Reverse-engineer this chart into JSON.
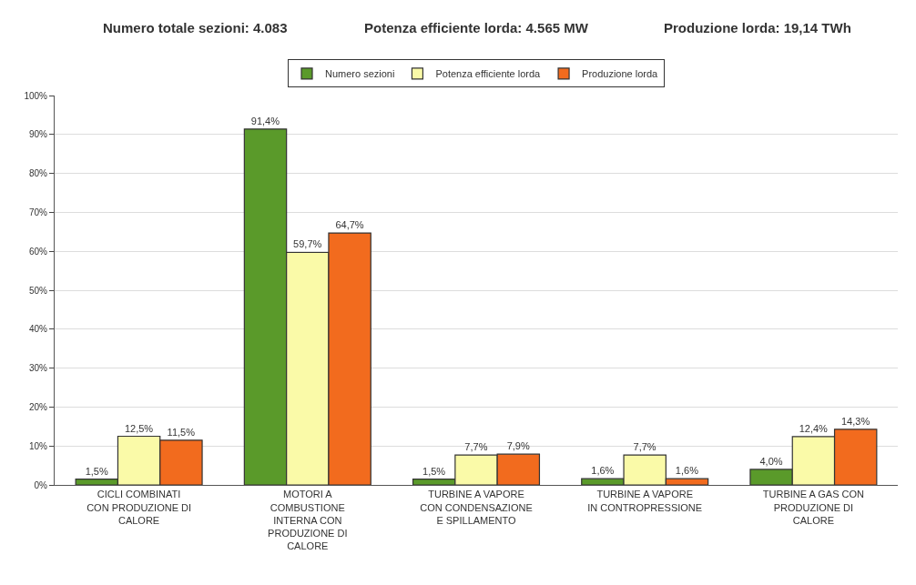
{
  "chart_data": {
    "type": "bar",
    "annotations": [
      "Numero totale sezioni: 4.083",
      "Potenza efficiente lorda: 4.565 MW",
      "Produzione lorda: 19,14 TWh"
    ],
    "categories": [
      "CICLI COMBINATI CON PRODUZIONE DI CALORE",
      "MOTORI A COMBUSTIONE INTERNA CON PRODUZIONE DI CALORE",
      "TURBINE A VAPORE CON CONDENSAZIONE E SPILLAMENTO",
      "TURBINE A VAPORE IN CONTROPRESSIONE",
      "TURBINE A GAS CON PRODUZIONE DI CALORE"
    ],
    "series": [
      {
        "name": "Numero sezioni",
        "color": "#5a9a2a",
        "values": [
          1.5,
          91.4,
          1.5,
          1.6,
          4.0
        ],
        "value_labels": [
          "1,5%",
          "91,4%",
          "1,5%",
          "1,6%",
          "4,0%"
        ]
      },
      {
        "name": "Potenza efficiente lorda",
        "color": "#fafaa8",
        "values": [
          12.5,
          59.7,
          7.7,
          7.7,
          12.4
        ],
        "value_labels": [
          "12,5%",
          "59,7%",
          "7,7%",
          "7,7%",
          "12,4%"
        ]
      },
      {
        "name": "Produzione lorda",
        "color": "#f26b1e",
        "values": [
          11.5,
          64.7,
          7.9,
          1.6,
          14.3
        ],
        "value_labels": [
          "11,5%",
          "64,7%",
          "7,9%",
          "1,6%",
          "14,3%"
        ]
      }
    ],
    "ylim": [
      0,
      100
    ],
    "yticks": [
      {
        "value": 0,
        "label": "0%"
      },
      {
        "value": 10,
        "label": "10%"
      },
      {
        "value": 20,
        "label": "20%"
      },
      {
        "value": 30,
        "label": "30%"
      },
      {
        "value": 40,
        "label": "40%"
      },
      {
        "value": 50,
        "label": "50%"
      },
      {
        "value": 60,
        "label": "60%"
      },
      {
        "value": 70,
        "label": "70%"
      },
      {
        "value": 80,
        "label": "80%"
      },
      {
        "value": 90,
        "label": "90%"
      },
      {
        "value": 100,
        "label": "100%"
      }
    ],
    "grid": "y",
    "legend": "top"
  }
}
